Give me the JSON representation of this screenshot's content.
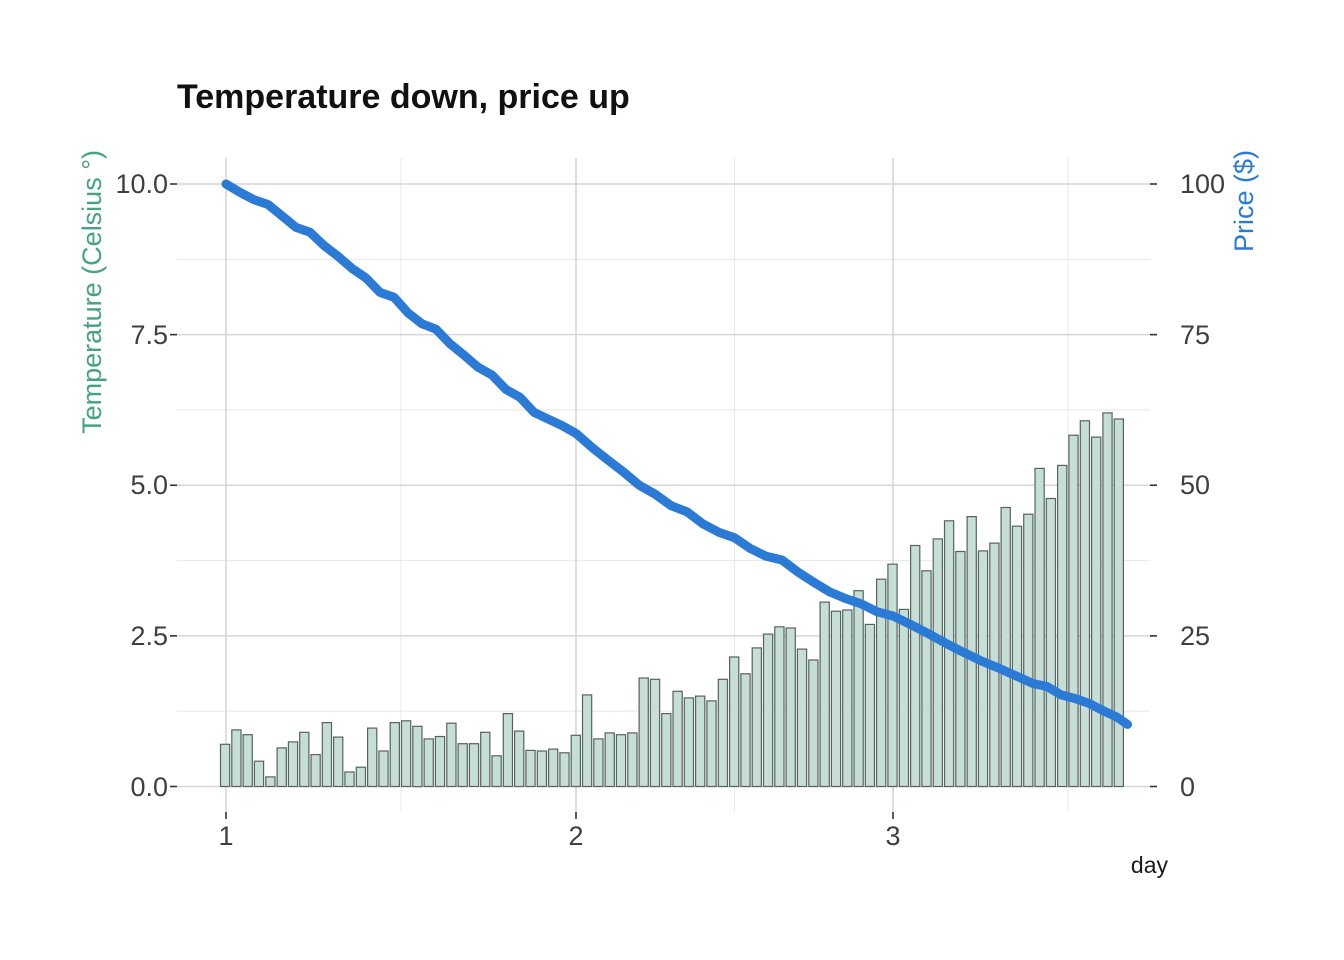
{
  "title": "Temperature down, price up",
  "chart_data": {
    "type": "bar",
    "subtype": "dual-axis bar + line",
    "title": "Temperature down, price up",
    "xlabel": "day",
    "legend": "none",
    "x_axis": {
      "major_tick_labels": [
        "1",
        "2",
        "3"
      ],
      "major_tick_days": [
        1,
        2,
        3
      ],
      "minor_grid_days": [
        1.5,
        2.5,
        3.5
      ],
      "range_days": [
        0.85,
        3.75
      ]
    },
    "left_axis": {
      "label": "Temperature (Celsius °)",
      "tick_labels": [
        "0.0",
        "2.5",
        "5.0",
        "7.5",
        "10.0"
      ],
      "tick_values": [
        0,
        2.5,
        5,
        7.5,
        10
      ],
      "minor_values": [
        1.25,
        3.75,
        6.25,
        8.75
      ],
      "range": [
        0,
        10.5
      ],
      "color": "#45a282"
    },
    "right_axis": {
      "label": "Price ($)",
      "tick_labels": [
        "0",
        "25",
        "50",
        "75",
        "100"
      ],
      "tick_values": [
        0,
        25,
        50,
        75,
        100
      ],
      "range": [
        0,
        105
      ],
      "color": "#2b7bd6"
    },
    "grid": {
      "background": "#ffffff",
      "major_color": "#d6d6d6",
      "minor_color": "#eaeaea",
      "tick_color": "#333333"
    },
    "series": [
      {
        "name": "temperature",
        "type": "bar",
        "axis": "left",
        "fill": "#c5ded6",
        "stroke": "#58625e",
        "day_start": 0.983,
        "day_end": 3.71,
        "values": [
          0.7,
          0.94,
          0.86,
          0.42,
          0.16,
          0.64,
          0.74,
          0.9,
          0.53,
          1.06,
          0.82,
          0.24,
          0.32,
          0.97,
          0.59,
          1.06,
          1.09,
          1.0,
          0.79,
          0.83,
          1.05,
          0.71,
          0.71,
          0.9,
          0.51,
          1.21,
          0.92,
          0.6,
          0.59,
          0.62,
          0.56,
          0.85,
          1.52,
          0.79,
          0.89,
          0.86,
          0.89,
          1.8,
          1.78,
          1.21,
          1.58,
          1.47,
          1.5,
          1.42,
          1.78,
          2.15,
          1.87,
          2.3,
          2.53,
          2.65,
          2.63,
          2.28,
          2.1,
          3.06,
          2.91,
          2.93,
          3.25,
          2.69,
          3.44,
          3.69,
          2.94,
          4.0,
          3.58,
          4.11,
          4.41,
          3.9,
          4.48,
          3.91,
          4.04,
          4.63,
          4.32,
          4.52,
          5.28,
          4.78,
          5.33,
          5.83,
          6.07,
          5.8,
          6.2,
          6.1
        ]
      },
      {
        "name": "price",
        "type": "line",
        "axis": "right",
        "color": "#2b7bd6",
        "stroke_width": 9,
        "points": [
          [
            1.0,
            100.0
          ],
          [
            1.04,
            98.6
          ],
          [
            1.08,
            97.4
          ],
          [
            1.12,
            96.6
          ],
          [
            1.16,
            94.7
          ],
          [
            1.2,
            92.8
          ],
          [
            1.24,
            92.0
          ],
          [
            1.28,
            89.8
          ],
          [
            1.32,
            88.0
          ],
          [
            1.36,
            86.0
          ],
          [
            1.4,
            84.4
          ],
          [
            1.44,
            82.0
          ],
          [
            1.48,
            81.2
          ],
          [
            1.52,
            78.6
          ],
          [
            1.56,
            76.8
          ],
          [
            1.6,
            75.9
          ],
          [
            1.64,
            73.5
          ],
          [
            1.68,
            71.6
          ],
          [
            1.72,
            69.6
          ],
          [
            1.76,
            68.3
          ],
          [
            1.8,
            65.9
          ],
          [
            1.84,
            64.6
          ],
          [
            1.88,
            62.1
          ],
          [
            1.92,
            61.0
          ],
          [
            1.96,
            59.9
          ],
          [
            2.0,
            58.6
          ],
          [
            2.05,
            56.3
          ],
          [
            2.1,
            54.2
          ],
          [
            2.15,
            52.2
          ],
          [
            2.2,
            50.0
          ],
          [
            2.25,
            48.5
          ],
          [
            2.3,
            46.6
          ],
          [
            2.35,
            45.6
          ],
          [
            2.4,
            43.6
          ],
          [
            2.45,
            42.2
          ],
          [
            2.5,
            41.3
          ],
          [
            2.55,
            39.5
          ],
          [
            2.6,
            38.2
          ],
          [
            2.65,
            37.6
          ],
          [
            2.7,
            35.6
          ],
          [
            2.75,
            33.9
          ],
          [
            2.8,
            32.3
          ],
          [
            2.85,
            31.2
          ],
          [
            2.9,
            30.3
          ],
          [
            2.95,
            29.0
          ],
          [
            3.0,
            28.3
          ],
          [
            3.05,
            26.9
          ],
          [
            3.1,
            25.4
          ],
          [
            3.15,
            23.8
          ],
          [
            3.2,
            22.3
          ],
          [
            3.25,
            20.9
          ],
          [
            3.3,
            19.7
          ],
          [
            3.35,
            18.4
          ],
          [
            3.4,
            17.1
          ],
          [
            3.44,
            16.6
          ],
          [
            3.48,
            15.2
          ],
          [
            3.52,
            14.6
          ],
          [
            3.56,
            13.8
          ],
          [
            3.6,
            12.6
          ],
          [
            3.64,
            11.5
          ],
          [
            3.67,
            10.3
          ]
        ]
      }
    ]
  }
}
